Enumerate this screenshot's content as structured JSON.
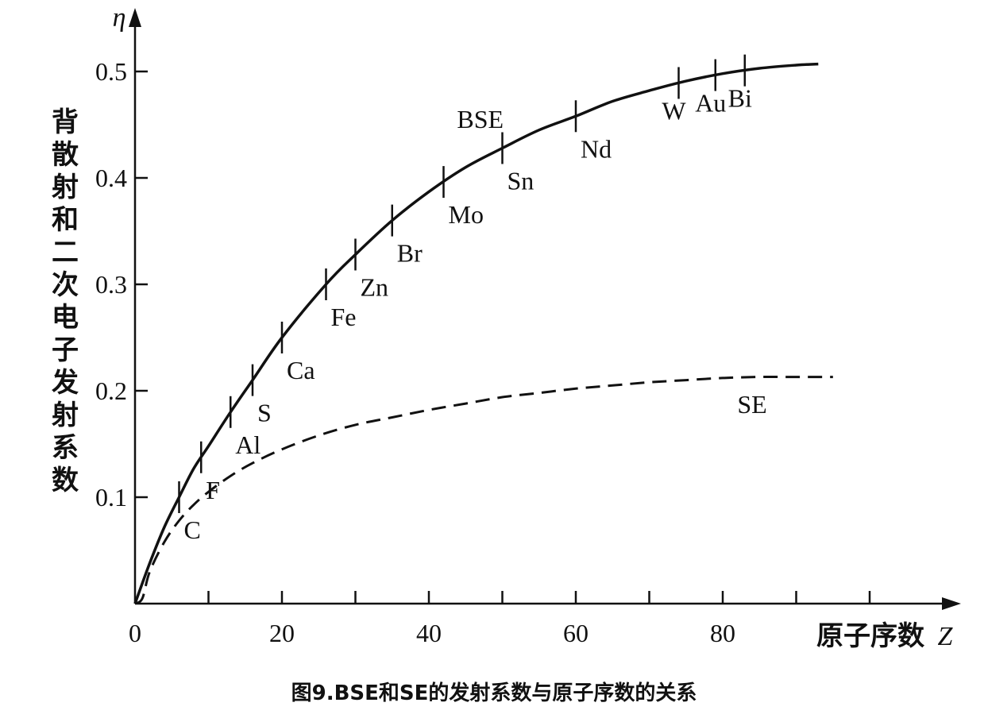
{
  "chart_data": {
    "type": "line",
    "y_symbol": "η",
    "ylabel": "背散射和二次电子发射系数",
    "xlabel": "原子序数",
    "x_symbol": "Z",
    "xlim": [
      0,
      113
    ],
    "ylim": [
      0,
      0.52
    ],
    "x_ticks": [
      0,
      10,
      20,
      30,
      40,
      50,
      60,
      70,
      80,
      90,
      100
    ],
    "x_tick_labels": [
      {
        "value": 0,
        "label": "0"
      },
      {
        "value": 20,
        "label": "20"
      },
      {
        "value": 40,
        "label": "40"
      },
      {
        "value": 60,
        "label": "60"
      },
      {
        "value": 80,
        "label": "80"
      }
    ],
    "y_tick_labels": [
      {
        "value": 0.1,
        "label": "0.1"
      },
      {
        "value": 0.2,
        "label": "0.2"
      },
      {
        "value": 0.3,
        "label": "0.3"
      },
      {
        "value": 0.4,
        "label": "0.4"
      },
      {
        "value": 0.5,
        "label": "0.5"
      }
    ],
    "series": [
      {
        "name": "BSE",
        "style": "solid",
        "x": [
          0,
          2,
          4,
          6,
          8,
          10,
          13,
          16,
          20,
          26,
          30,
          35,
          40,
          45,
          50,
          55,
          60,
          65,
          70,
          75,
          80,
          85,
          90,
          93
        ],
        "y": [
          0,
          0.038,
          0.072,
          0.1,
          0.127,
          0.148,
          0.18,
          0.21,
          0.25,
          0.3,
          0.328,
          0.36,
          0.387,
          0.41,
          0.428,
          0.445,
          0.458,
          0.472,
          0.482,
          0.491,
          0.498,
          0.503,
          0.506,
          0.507
        ]
      },
      {
        "name": "SE",
        "style": "dashed",
        "x": [
          0,
          1,
          2,
          4,
          6,
          8,
          10,
          13,
          16,
          20,
          25,
          30,
          35,
          40,
          45,
          50,
          55,
          60,
          65,
          70,
          75,
          80,
          85,
          90,
          95
        ],
        "y": [
          0,
          0.005,
          0.03,
          0.058,
          0.078,
          0.093,
          0.105,
          0.12,
          0.132,
          0.145,
          0.158,
          0.168,
          0.175,
          0.182,
          0.188,
          0.194,
          0.198,
          0.202,
          0.205,
          0.208,
          0.21,
          0.212,
          0.213,
          0.213,
          0.213
        ]
      }
    ],
    "element_markers": [
      {
        "symbol": "C",
        "z": 6
      },
      {
        "symbol": "F",
        "z": 9
      },
      {
        "symbol": "Al",
        "z": 13
      },
      {
        "symbol": "S",
        "z": 16
      },
      {
        "symbol": "Ca",
        "z": 20
      },
      {
        "symbol": "Fe",
        "z": 26
      },
      {
        "symbol": "Zn",
        "z": 30
      },
      {
        "symbol": "Br",
        "z": 35
      },
      {
        "symbol": "Mo",
        "z": 42
      },
      {
        "symbol": "Sn",
        "z": 50
      },
      {
        "symbol": "Nd",
        "z": 60
      },
      {
        "symbol": "W",
        "z": 74
      },
      {
        "symbol": "Au",
        "z": 79
      },
      {
        "symbol": "Bi",
        "z": 83
      }
    ],
    "caption": "图9.BSE和SE的发射系数与原子序数的关系"
  }
}
